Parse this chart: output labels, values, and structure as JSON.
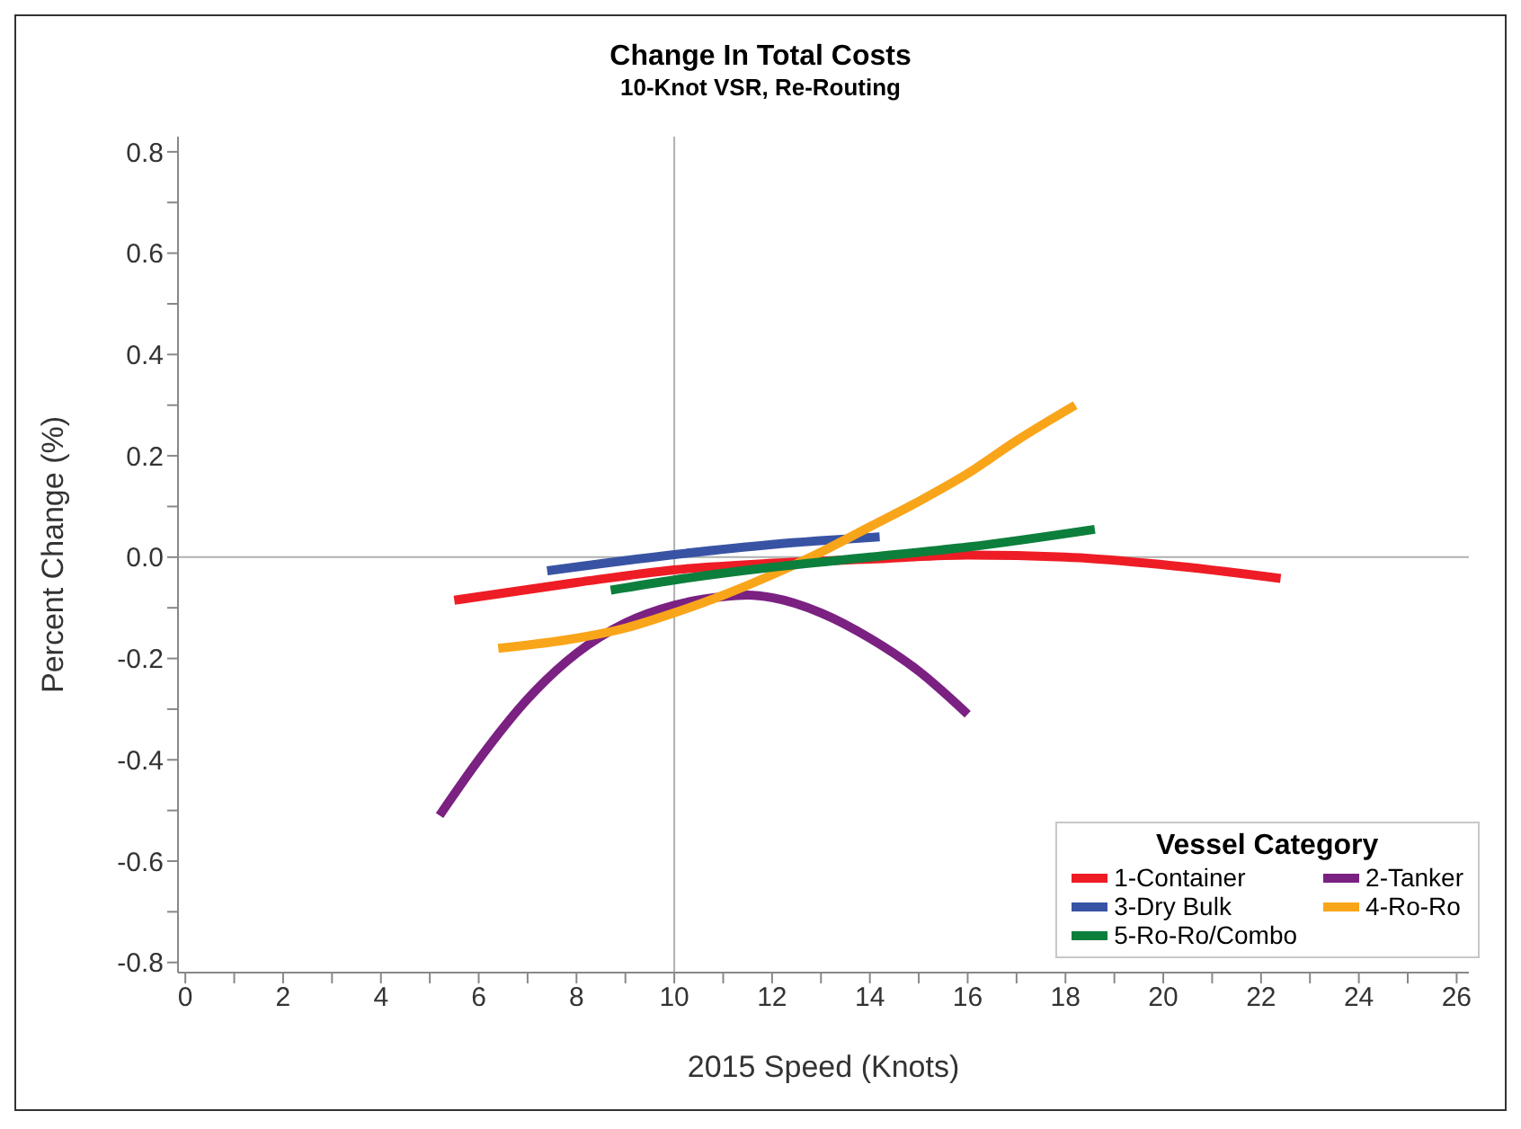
{
  "chart_data": {
    "type": "line",
    "title": "Change In Total Costs",
    "subtitle": "10-Knot VSR, Re-Routing",
    "xlabel": "2015 Speed (Knots)",
    "ylabel": "Percent Change (%)",
    "legend_title": "Vessel Category",
    "legend": "bottom right",
    "grid": false,
    "marker": "none",
    "line_style": "solid",
    "xlim": [
      -0.15,
      26.25
    ],
    "ylim": [
      -0.82,
      0.83
    ],
    "xticks": [
      0,
      {
        "value": 1,
        "label": null
      },
      2,
      {
        "value": 3,
        "label": null
      },
      4,
      {
        "value": 5,
        "label": null
      },
      6,
      {
        "value": 7,
        "label": null
      },
      8,
      {
        "value": 9,
        "label": null
      },
      10,
      {
        "value": 11,
        "label": null
      },
      12,
      {
        "value": 13,
        "label": null
      },
      14,
      {
        "value": 15,
        "label": null
      },
      16,
      {
        "value": 17,
        "label": null
      },
      18,
      {
        "value": 19,
        "label": null
      },
      20,
      {
        "value": 21,
        "label": null
      },
      22,
      {
        "value": 23,
        "label": null
      },
      24,
      {
        "value": 25,
        "label": null
      },
      26
    ],
    "yticks": [
      {
        "value": -0.8,
        "label": "-0.8"
      },
      {
        "value": -0.7,
        "label": null
      },
      {
        "value": -0.6,
        "label": "-0.6"
      },
      {
        "value": -0.5,
        "label": null
      },
      {
        "value": -0.4,
        "label": "-0.4"
      },
      {
        "value": -0.3,
        "label": null
      },
      {
        "value": -0.2,
        "label": "-0.2"
      },
      {
        "value": -0.1,
        "label": null
      },
      {
        "value": 0,
        "label": "0.0"
      },
      {
        "value": 0.1,
        "label": null
      },
      {
        "value": 0.2,
        "label": "0.2"
      },
      {
        "value": 0.3,
        "label": null
      },
      {
        "value": 0.4,
        "label": "0.4"
      },
      {
        "value": 0.5,
        "label": null
      },
      {
        "value": 0.6,
        "label": "0.6"
      },
      {
        "value": 0.7,
        "label": null
      },
      {
        "value": 0.8,
        "label": "0.8"
      }
    ],
    "ref_lines": [
      {
        "axis": "x",
        "value": 10,
        "color": "#b0b0b0"
      },
      {
        "axis": "y",
        "value": 0,
        "color": "#b0b0b0"
      }
    ],
    "series": [
      {
        "name": "1-Container",
        "color": "#ee1c25",
        "x": [
          5.5,
          8,
          10,
          12,
          14,
          16,
          18,
          20,
          22.4
        ],
        "values": [
          -0.085,
          -0.05,
          -0.025,
          -0.012,
          -0.004,
          0.004,
          0,
          -0.015,
          -0.042
        ]
      },
      {
        "name": "2-Tanker",
        "color": "#7b2182",
        "x": [
          5.2,
          6,
          7,
          8,
          9,
          10,
          11,
          11.5,
          12,
          13,
          14,
          15,
          16
        ],
        "values": [
          -0.51,
          -0.4,
          -0.28,
          -0.19,
          -0.13,
          -0.095,
          -0.078,
          -0.075,
          -0.08,
          -0.11,
          -0.16,
          -0.225,
          -0.31
        ]
      },
      {
        "name": "3-Dry Bulk",
        "color": "#3953a4",
        "x": [
          7.4,
          10,
          12,
          14.2
        ],
        "values": [
          -0.027,
          0.005,
          0.025,
          0.04
        ]
      },
      {
        "name": "4-Ro-Ro",
        "color": "#f9a51a",
        "x": [
          6.4,
          8,
          9,
          10,
          11,
          12,
          13,
          14,
          15,
          16,
          17,
          18.2
        ],
        "values": [
          -0.18,
          -0.16,
          -0.14,
          -0.11,
          -0.075,
          -0.035,
          0.01,
          0.06,
          0.11,
          0.165,
          0.23,
          0.3
        ]
      },
      {
        "name": "5-Ro-Ro/Combo",
        "color": "#0d7f3c",
        "x": [
          8.7,
          10,
          12,
          14,
          16,
          18.6
        ],
        "values": [
          -0.065,
          -0.045,
          -0.02,
          0,
          0.02,
          0.055
        ]
      }
    ]
  }
}
